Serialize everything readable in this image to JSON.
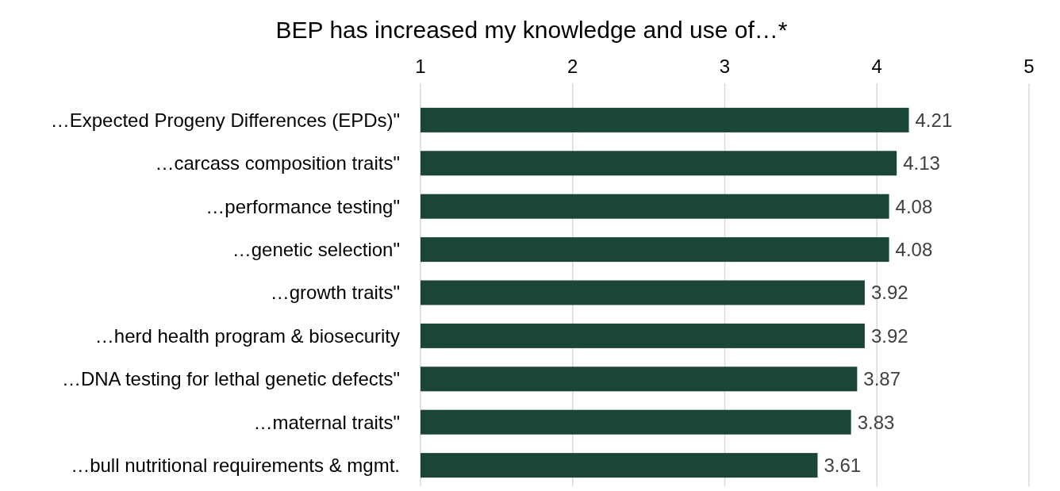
{
  "chart_data": {
    "type": "bar",
    "orientation": "horizontal",
    "title": "BEP has increased my knowledge and use of…*",
    "categories": [
      "…Expected Progeny Differences (EPDs)\"",
      "…carcass composition traits\"",
      "…performance testing\"",
      "…genetic selection\"",
      "…growth traits\"",
      "…herd health program & biosecurity",
      "…DNA testing for lethal genetic defects\"",
      "…maternal traits\"",
      "…bull nutritional requirements & mgmt."
    ],
    "values": [
      4.21,
      4.13,
      4.08,
      4.08,
      3.92,
      3.92,
      3.87,
      3.83,
      3.61
    ],
    "color": "#1b4539",
    "xlim": [
      1,
      5
    ],
    "xticks": [
      1,
      2,
      3,
      4,
      5
    ],
    "grid": "x",
    "data_labels": true
  }
}
